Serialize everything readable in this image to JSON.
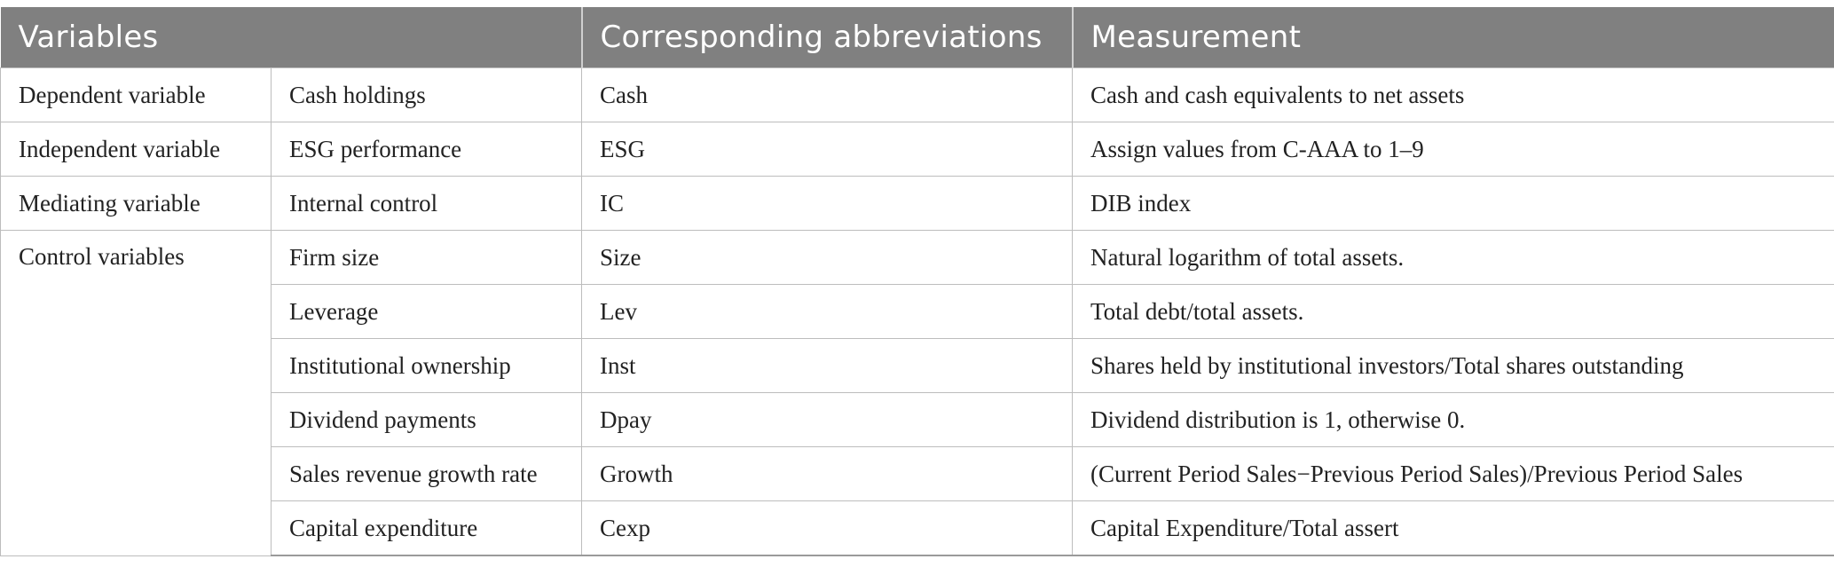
{
  "header": {
    "col_variables": "Variables",
    "col_abbreviations": "Corresponding abbreviations",
    "col_measurement": "Measurement"
  },
  "rows": [
    {
      "category": "Dependent variable",
      "variable": "Cash holdings",
      "abbr": "Cash",
      "measurement": "Cash and cash equivalents to net assets"
    },
    {
      "category": "Independent variable",
      "variable": "ESG performance",
      "abbr": "ESG",
      "measurement": "Assign values from C-AAA to 1–9"
    },
    {
      "category": "Mediating variable",
      "variable": "Internal control",
      "abbr": "IC",
      "measurement": "DIB index"
    },
    {
      "category": "Control variables",
      "variable": "Firm size",
      "abbr": "Size",
      "measurement": "Natural logarithm of total assets."
    },
    {
      "category": "",
      "variable": "Leverage",
      "abbr": "Lev",
      "measurement": "Total debt/total assets."
    },
    {
      "category": "",
      "variable": "Institutional ownership",
      "abbr": "Inst",
      "measurement": "Shares held by institutional investors/Total shares outstanding"
    },
    {
      "category": "",
      "variable": "Dividend payments",
      "abbr": "Dpay",
      "measurement": "Dividend distribution is 1, otherwise 0."
    },
    {
      "category": "",
      "variable": "Sales revenue growth rate",
      "abbr": "Growth",
      "measurement": "(Current Period Sales−Previous Period Sales)/Previous Period Sales"
    },
    {
      "category": "",
      "variable": "Capital expenditure",
      "abbr": "Cexp",
      "measurement": "Capital Expenditure/Total assert"
    }
  ]
}
